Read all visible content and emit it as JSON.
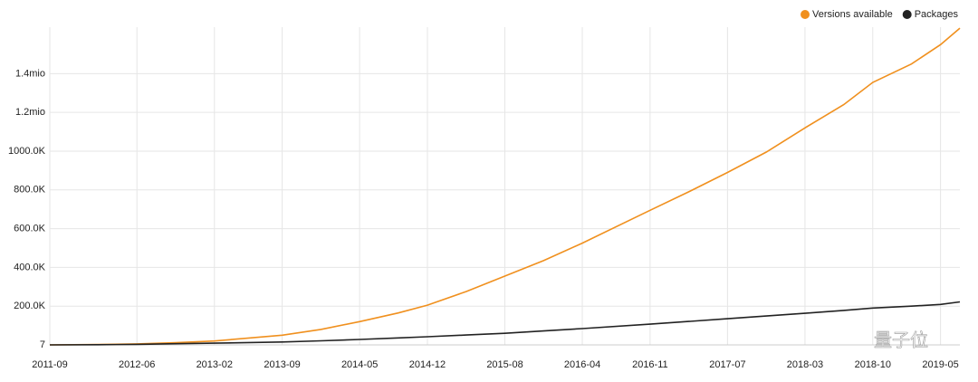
{
  "chart_data": {
    "type": "line",
    "x": [
      "2011-09",
      "2012-02",
      "2012-06",
      "2012-10",
      "2013-02",
      "2013-09",
      "2014-01",
      "2014-05",
      "2014-09",
      "2014-12",
      "2015-04",
      "2015-08",
      "2015-12",
      "2016-04",
      "2016-11",
      "2017-03",
      "2017-07",
      "2017-11",
      "2018-03",
      "2018-07",
      "2018-10",
      "2019-02",
      "2019-05",
      "2019-07"
    ],
    "series": [
      {
        "name": "Versions available",
        "color": "#f0901e",
        "values": [
          0,
          2000,
          5000,
          11000,
          20000,
          50000,
          80000,
          120000,
          165000,
          205000,
          275000,
          355000,
          435000,
          525000,
          695000,
          790000,
          890000,
          995000,
          1120000,
          1240000,
          1355000,
          1450000,
          1550000,
          1635000
        ]
      },
      {
        "name": "Packages",
        "color": "#222222",
        "values": [
          0,
          1000,
          3000,
          6000,
          9000,
          15000,
          21000,
          28000,
          36000,
          42000,
          51000,
          60000,
          72000,
          84000,
          107000,
          121000,
          135000,
          149000,
          163000,
          178000,
          190000,
          200000,
          209000,
          222000
        ]
      }
    ],
    "xlim": [
      "2011-09",
      "2019-07"
    ],
    "xticks": [
      "2011-09",
      "2012-06",
      "2013-02",
      "2013-09",
      "2014-05",
      "2014-12",
      "2015-08",
      "2016-04",
      "2016-11",
      "2017-07",
      "2018-03",
      "2018-10",
      "2019-05"
    ],
    "ylim": [
      7,
      1640000
    ],
    "yticks": [
      7,
      {
        "value": 200000,
        "label": "200.0K"
      },
      {
        "value": 400000,
        "label": "400.0K"
      },
      {
        "value": 600000,
        "label": "600.0K"
      },
      {
        "value": 800000,
        "label": "800.0K"
      },
      {
        "value": 1000000,
        "label": "1000.0K"
      },
      {
        "value": 1200000,
        "label": "1.2mio"
      },
      {
        "value": 1400000,
        "label": "1.4mio"
      }
    ],
    "grid": true,
    "legend": "top-right",
    "watermark": "量子位"
  }
}
